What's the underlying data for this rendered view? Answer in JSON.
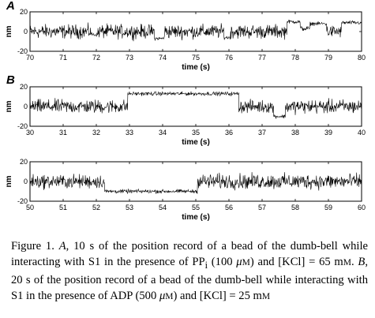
{
  "figure": {
    "panels": [
      {
        "letter": "A",
        "xlabel": "time (s)",
        "ylabel": "nm",
        "xlim": [
          70,
          80
        ],
        "ylim": [
          -20,
          20
        ],
        "xticks": [
          "70",
          "71",
          "72",
          "73",
          "74",
          "75",
          "76",
          "77",
          "78",
          "79",
          "80"
        ],
        "yticks": [
          "20",
          "0",
          "-20"
        ]
      },
      {
        "letter": "B",
        "xlabel": "time (s)",
        "ylabel": "nm",
        "xlim": [
          30,
          40
        ],
        "ylim": [
          -20,
          20
        ],
        "xticks": [
          "30",
          "31",
          "32",
          "33",
          "34",
          "35",
          "36",
          "37",
          "38",
          "39",
          "40"
        ],
        "yticks": [
          "20",
          "0",
          "-20"
        ]
      },
      {
        "letter": "",
        "xlabel": "time (s)",
        "ylabel": "nm",
        "xlim": [
          50,
          60
        ],
        "ylim": [
          -20,
          20
        ],
        "xticks": [
          "50",
          "51",
          "52",
          "53",
          "54",
          "55",
          "56",
          "57",
          "58",
          "59",
          "60"
        ],
        "yticks": [
          "20",
          "0",
          "-20"
        ]
      }
    ]
  },
  "chart_data": [
    {
      "type": "line",
      "title": "",
      "xlabel": "time (s)",
      "ylabel": "nm",
      "xlim": [
        70,
        80
      ],
      "ylim": [
        -20,
        20
      ],
      "segments": [
        {
          "x": [
            70,
            71.85
          ],
          "y": 0,
          "noise": 5.5
        },
        {
          "x": [
            71.85,
            72.05
          ],
          "y": -3,
          "noise": 1.5
        },
        {
          "x": [
            72.05,
            73.75
          ],
          "y": 0,
          "noise": 5.5
        },
        {
          "x": [
            73.75,
            74.05
          ],
          "y": -7,
          "noise": 1.5
        },
        {
          "x": [
            74.05,
            75.85
          ],
          "y": 0,
          "noise": 5.5
        },
        {
          "x": [
            75.85,
            76.05
          ],
          "y": -6,
          "noise": 1.5
        },
        {
          "x": [
            76.05,
            77.75
          ],
          "y": 0,
          "noise": 5.5
        },
        {
          "x": [
            77.75,
            78.15
          ],
          "y": 10,
          "noise": 1.5
        },
        {
          "x": [
            78.15,
            78.45
          ],
          "y": 3,
          "noise": 2
        },
        {
          "x": [
            78.45,
            78.95
          ],
          "y": 8,
          "noise": 1.5
        },
        {
          "x": [
            78.95,
            79.4
          ],
          "y": 0,
          "noise": 5
        },
        {
          "x": [
            79.4,
            80
          ],
          "y": 9,
          "noise": 1.5
        }
      ]
    },
    {
      "type": "line",
      "title": "",
      "xlabel": "time (s)",
      "ylabel": "nm",
      "xlim": [
        30,
        40
      ],
      "ylim": [
        -20,
        20
      ],
      "segments": [
        {
          "x": [
            30,
            32.95
          ],
          "y": 0,
          "noise": 5.5
        },
        {
          "x": [
            32.95,
            36.3
          ],
          "y": 13,
          "noise": 1.5
        },
        {
          "x": [
            36.3,
            37.35
          ],
          "y": 0,
          "noise": 5
        },
        {
          "x": [
            37.35,
            37.7
          ],
          "y": -10,
          "noise": 1.5
        },
        {
          "x": [
            37.7,
            40
          ],
          "y": 0,
          "noise": 5.5
        }
      ]
    },
    {
      "type": "line",
      "title": "",
      "xlabel": "time (s)",
      "ylabel": "nm",
      "xlim": [
        50,
        60
      ],
      "ylim": [
        -20,
        20
      ],
      "segments": [
        {
          "x": [
            50,
            52.25
          ],
          "y": 0,
          "noise": 5.5
        },
        {
          "x": [
            52.25,
            55.05
          ],
          "y": -10,
          "noise": 1.5
        },
        {
          "x": [
            55.05,
            60
          ],
          "y": 0,
          "noise": 6
        }
      ]
    }
  ],
  "caption": {
    "fig_label": "Figure 1.",
    "a_label": "A",
    "a_text_1": ", 10 s of the position record of a bead of the dumb-bell while interacting with S1 in the presence of PP",
    "a_sub": "i",
    "a_text_2": " (100 ",
    "a_mu_1": "μ",
    "a_unit_1": "M",
    "a_text_3": ") and [KCl] = 65 m",
    "a_unit_2": "M",
    "a_text_4": ". ",
    "b_label": "B",
    "b_text_1": ", 20 s of the position record of a bead of the dumb-bell while interacting with S1 in the presence of ADP (500 ",
    "b_mu": "μ",
    "b_unit_1": "M",
    "b_text_2": ") and [KCl] = 25 m",
    "b_unit_2": "M"
  }
}
